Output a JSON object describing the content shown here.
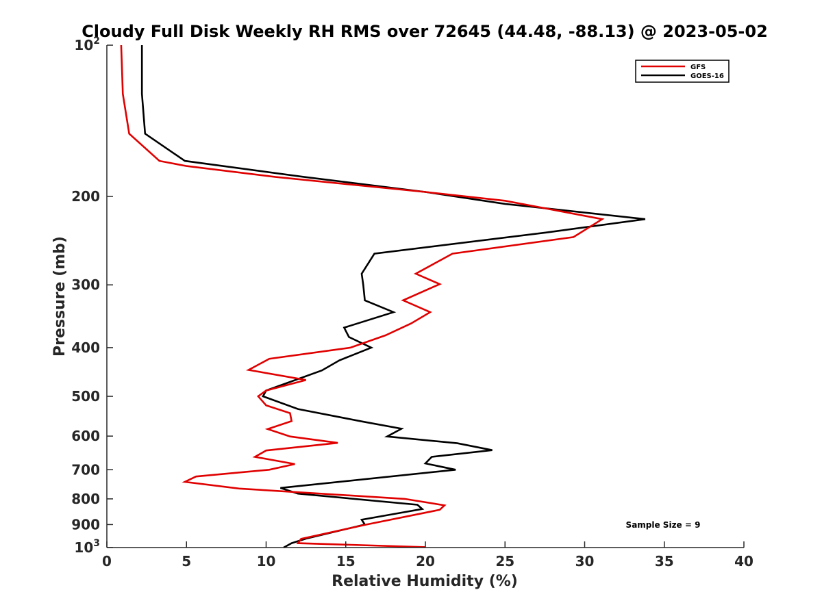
{
  "chart_data": {
    "type": "line",
    "title": "Cloudy Full Disk Weekly RH RMS over 72645 (44.48, -88.13) @ 2023-05-02",
    "xlabel": "Relative Humidity (%)",
    "ylabel": "Pressure (mb)",
    "xlim": [
      0,
      40
    ],
    "ylim": [
      100,
      1000
    ],
    "y_scale": "log",
    "y_reversed": true,
    "x_ticks": [
      "0",
      "5",
      "10",
      "15",
      "20",
      "25",
      "30",
      "35",
      "40"
    ],
    "y_ticks": [
      {
        "value": 100,
        "base": "10",
        "exp": "2"
      },
      {
        "value": 200,
        "label": "200"
      },
      {
        "value": 300,
        "label": "300"
      },
      {
        "value": 400,
        "label": "400"
      },
      {
        "value": 500,
        "label": "500"
      },
      {
        "value": 600,
        "label": "600"
      },
      {
        "value": 700,
        "label": "700"
      },
      {
        "value": 800,
        "label": "800"
      },
      {
        "value": 900,
        "label": "900"
      },
      {
        "value": 1000,
        "base": "10",
        "exp": "3"
      }
    ],
    "grid": false,
    "legend_position": "top-right",
    "annotation": "Sample Size = 9",
    "series": [
      {
        "name": "GFS",
        "color": "#e00000",
        "points": [
          [
            0.9,
            100
          ],
          [
            1.0,
            125
          ],
          [
            1.4,
            150
          ],
          [
            3.3,
            170
          ],
          [
            5.0,
            174
          ],
          [
            10.6,
            183
          ],
          [
            20.0,
            196
          ],
          [
            25.0,
            204
          ],
          [
            31.1,
            222
          ],
          [
            29.3,
            241
          ],
          [
            21.7,
            260
          ],
          [
            19.4,
            285
          ],
          [
            20.9,
            299
          ],
          [
            18.6,
            322
          ],
          [
            20.3,
            340
          ],
          [
            19.1,
            358
          ],
          [
            17.5,
            378
          ],
          [
            15.3,
            400
          ],
          [
            10.2,
            421
          ],
          [
            8.9,
            443
          ],
          [
            12.5,
            464
          ],
          [
            10.0,
            487
          ],
          [
            9.5,
            500
          ],
          [
            10.0,
            521
          ],
          [
            11.5,
            540
          ],
          [
            11.6,
            560
          ],
          [
            10.1,
            581
          ],
          [
            11.5,
            601
          ],
          [
            14.5,
            619
          ],
          [
            10.0,
            641
          ],
          [
            9.3,
            660
          ],
          [
            11.8,
            682
          ],
          [
            10.2,
            700
          ],
          [
            5.6,
            722
          ],
          [
            4.9,
            740
          ],
          [
            8.3,
            763
          ],
          [
            18.7,
            800
          ],
          [
            21.2,
            824
          ],
          [
            20.9,
            841
          ],
          [
            16.3,
            900
          ],
          [
            12.2,
            961
          ],
          [
            12.0,
            980
          ],
          [
            20.0,
            998
          ]
        ]
      },
      {
        "name": "GOES-16",
        "color": "#000000",
        "points": [
          [
            2.2,
            100
          ],
          [
            2.2,
            125
          ],
          [
            2.4,
            150
          ],
          [
            4.9,
            170
          ],
          [
            12.4,
            183
          ],
          [
            20.0,
            196
          ],
          [
            25.0,
            207
          ],
          [
            33.8,
            222
          ],
          [
            27.6,
            236
          ],
          [
            16.8,
            260
          ],
          [
            16.0,
            285
          ],
          [
            16.1,
            300
          ],
          [
            16.2,
            322
          ],
          [
            18.0,
            340
          ],
          [
            14.9,
            365
          ],
          [
            15.2,
            381
          ],
          [
            16.6,
            400
          ],
          [
            14.6,
            424
          ],
          [
            13.5,
            444
          ],
          [
            10.0,
            487
          ],
          [
            9.8,
            500
          ],
          [
            12.0,
            530
          ],
          [
            16.0,
            561
          ],
          [
            18.5,
            580
          ],
          [
            17.6,
            601
          ],
          [
            22.0,
            620
          ],
          [
            24.2,
            640
          ],
          [
            20.4,
            660
          ],
          [
            20.0,
            680
          ],
          [
            21.9,
            700
          ],
          [
            10.9,
            761
          ],
          [
            12.0,
            781
          ],
          [
            19.5,
            822
          ],
          [
            19.8,
            838
          ],
          [
            17.8,
            860
          ],
          [
            16.0,
            880
          ],
          [
            16.2,
            900
          ],
          [
            12.5,
            960
          ],
          [
            11.6,
            980
          ],
          [
            11.1,
            1000
          ]
        ]
      }
    ]
  }
}
